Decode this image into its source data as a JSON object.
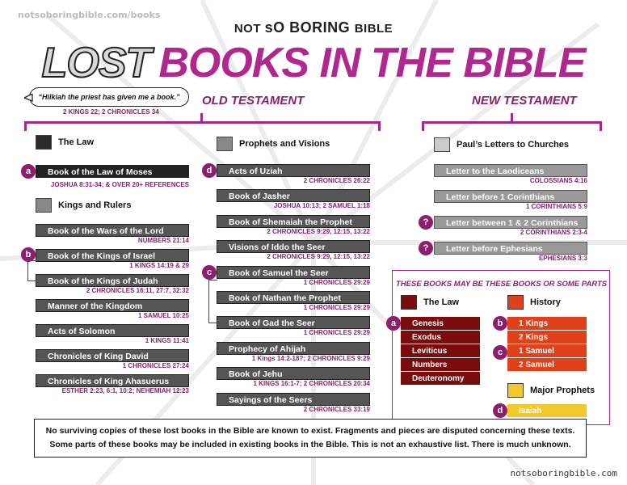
{
  "site_top": "notsoboringbible.com/books",
  "site_bottom": "notsoboringbible.com",
  "brand": {
    "part1": "NOT ",
    "part2": "sO",
    "part3": " BORING ",
    "part4": "BIBLE"
  },
  "title": {
    "lost": "LOST",
    "rest": "BOOKS IN THE BIBLE"
  },
  "quote": {
    "text": "“Hilkiah the priest has given me a book.”",
    "ref": "2 KINGS 22; 2 CHRONICLES 34"
  },
  "old_testament": {
    "heading": "OLD TESTAMENT",
    "law": {
      "label": "The Law",
      "books": [
        {
          "badge": "a",
          "name": "Book of the Law of Moses",
          "ref": "JOSHUA 8:31-34; & OVER 20+ REFERENCES"
        }
      ]
    },
    "kings": {
      "label": "Kings and Rulers",
      "books": [
        {
          "name": "Book of the Wars of the Lord",
          "ref": "NUMBERS 21:14"
        },
        {
          "badge": "b",
          "name": "Book of the Kings of Israel",
          "ref": "1 KINGS 14:19 & 29"
        },
        {
          "name": "Book of the Kings of Judah",
          "ref": "2 CHRONICLES 16:11, 27:7, 32:32"
        },
        {
          "name": "Manner of the Kingdom",
          "ref": "1 SAMUEL 10:25"
        },
        {
          "name": "Acts of Solomon",
          "ref": "1 KINGS 11:41"
        },
        {
          "name": "Chronicles of King David",
          "ref": "1 CHRONICLES 27:24"
        },
        {
          "name": "Chronicles of King Ahasuerus",
          "ref": "ESTHER 2:23, 6:1, 10:2; NEHEMIAH 12:23"
        }
      ]
    },
    "prophets": {
      "label": "Prophets and Visions",
      "books": [
        {
          "badge": "d",
          "name": "Acts of Uziah",
          "ref": "2 CHRONICLES 26:22"
        },
        {
          "name": "Book of Jasher",
          "ref": "JOSHUA 10:13; 2 SAMUEL 1:18"
        },
        {
          "name": "Book of Shemaiah the Prophet",
          "ref": "2 CHRONICLES 9:29, 12:15, 13:22"
        },
        {
          "name": "Visions of Iddo the Seer",
          "ref": "2 CHRONICLES 9:29, 12:15, 13:22"
        },
        {
          "badge": "c",
          "name": "Book of Samuel the Seer",
          "ref": "1 CHRONICLES 29:29"
        },
        {
          "name": "Book of Nathan the Prophet",
          "ref": "1 CHRONICLES 29:29"
        },
        {
          "name": "Book of Gad the Seer",
          "ref": "1 CHRONICLES 29:29"
        },
        {
          "name": "Prophecy of Ahijah",
          "ref": "1 Kings 14:2-18?; 2 CHRONICLES 9:29"
        },
        {
          "name": "Book of Jehu",
          "ref": "1 KINGS 16:1-7; 2 CHRONICLES 20:34"
        },
        {
          "name": "Sayings of the Seers",
          "ref": "2 CHRONICLES 33:19"
        }
      ]
    }
  },
  "new_testament": {
    "heading": "NEW TESTAMENT",
    "label": "Paul’s Letters to Churches",
    "books": [
      {
        "name": "Letter to the Laodiceans",
        "ref": "COLOSSIANS 4:16"
      },
      {
        "name": "Letter before 1 Corinthians",
        "ref": "1 CORINTHIANS 5:9"
      },
      {
        "badge": "?",
        "name": "Letter between 1 & 2 Corinthians",
        "ref": "2 CORINTHIANS 2:3-4"
      },
      {
        "badge": "?",
        "name": "Letter before Ephesians",
        "ref": "EPHESIANS 3:3"
      }
    ]
  },
  "maybe": {
    "title": "THESE BOOKS MAY BE THESE BOOKS OR SOME PARTS",
    "law_label": "The Law",
    "law_badge": "a",
    "law_books": [
      "Genesis",
      "Exodus",
      "Leviticus",
      "Numbers",
      "Deuteronomy"
    ],
    "history_label": "History",
    "history_b": "b",
    "history_c": "c",
    "history_books": [
      "1 Kings",
      "2 Kings",
      "1 Samuel",
      "2 Samuel"
    ],
    "prophets_label": "Major Prophets",
    "prophets_badge": "d",
    "prophets_books": [
      "Isaiah"
    ]
  },
  "footer": {
    "line1": "No surviving copies of these lost books in the Bible are known to exist. Fragments and pieces are disputed concerning these texts.",
    "line2": "Some parts of these books may be included in existing books in the Bible. This is not an exhaustive list. There is much unknown."
  }
}
